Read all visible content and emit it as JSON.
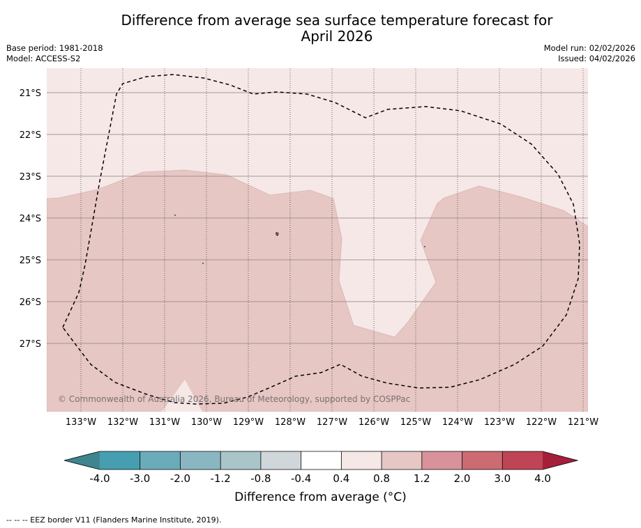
{
  "title": {
    "line1": "Difference from average sea surface temperature forecast for",
    "line2": "April 2026"
  },
  "meta": {
    "base_period": "Base period: 1981-2018",
    "model": "Model: ACCESS-S2",
    "model_run": "Model run: 02/02/2026",
    "issued": "Issued: 04/02/2026"
  },
  "map": {
    "lat_labels": [
      "21°S",
      "22°S",
      "23°S",
      "24°S",
      "25°S",
      "26°S",
      "27°S"
    ],
    "lon_labels": [
      "133°W",
      "132°W",
      "131°W",
      "130°W",
      "129°W",
      "128°W",
      "127°W",
      "126°W",
      "125°W",
      "124°W",
      "123°W",
      "122°W",
      "121°W"
    ],
    "copyright": "© Commonwealth of Australia 2026, Bureau of Meteorology, supported by COSPPac",
    "anomaly_fill_colors": {
      "0.4 to 0.8": "#f5e8e7",
      "0.8 to 1.2": "#e6c7c3"
    }
  },
  "colorbar": {
    "title": "Difference from average (°C)",
    "tick_labels": [
      "-4.0",
      "-3.0",
      "-2.0",
      "-1.2",
      "-0.8",
      "-0.4",
      "0.4",
      "0.8",
      "1.2",
      "2.0",
      "3.0",
      "4.0"
    ],
    "colors": [
      "#3f858f",
      "#469fb0",
      "#6aacba",
      "#8ab6c2",
      "#a9c5c9",
      "#d0d7da",
      "#ffffff",
      "#f5e8e7",
      "#e6c7c3",
      "#d9929a",
      "#cc6b72",
      "#bf4556",
      "#a61f3a"
    ]
  },
  "footnote": "--  --  -- EEZ border V11 (Flanders Marine Institute, 2019)."
}
